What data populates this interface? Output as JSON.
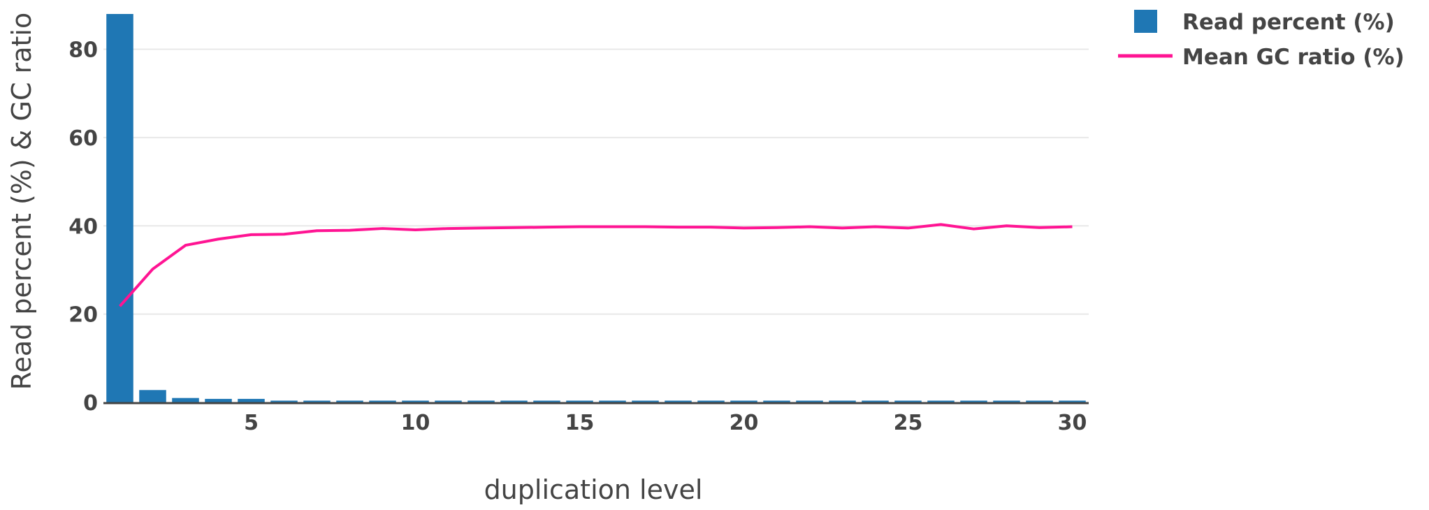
{
  "chart_data": {
    "type": "bar",
    "xlabel": "duplication level",
    "ylabel": "Read percent (%)  & GC ratio",
    "x": [
      1,
      2,
      3,
      4,
      5,
      6,
      7,
      8,
      9,
      10,
      11,
      12,
      13,
      14,
      15,
      16,
      17,
      18,
      19,
      20,
      21,
      22,
      23,
      24,
      25,
      26,
      27,
      28,
      29,
      30
    ],
    "xlim": [
      0.5,
      30.5
    ],
    "ylim": [
      0,
      88
    ],
    "xticks": [
      "5",
      "10",
      "15",
      "20",
      "25",
      "30"
    ],
    "yticks": [
      "0",
      "20",
      "40",
      "60",
      "80"
    ],
    "grid": true,
    "legend_position": "top-right",
    "series": [
      {
        "name": "Read percent (%)",
        "kind": "bar",
        "color": "#1f77b4",
        "values": [
          88,
          2.8,
          1.0,
          0.8,
          0.8,
          0.4,
          0.4,
          0.4,
          0.4,
          0.4,
          0.4,
          0.4,
          0.4,
          0.4,
          0.4,
          0.4,
          0.4,
          0.4,
          0.4,
          0.4,
          0.4,
          0.4,
          0.4,
          0.4,
          0.4,
          0.4,
          0.4,
          0.4,
          0.4,
          0.4
        ]
      },
      {
        "name": "Mean GC ratio (%)",
        "kind": "line",
        "color": "#ff1493",
        "values": [
          21.8,
          30.2,
          35.6,
          37.0,
          38.0,
          38.1,
          38.9,
          39.0,
          39.4,
          39.1,
          39.4,
          39.5,
          39.6,
          39.7,
          39.8,
          39.8,
          39.8,
          39.7,
          39.7,
          39.5,
          39.6,
          39.8,
          39.5,
          39.8,
          39.5,
          40.3,
          39.3,
          40.0,
          39.6,
          39.8
        ]
      }
    ]
  }
}
